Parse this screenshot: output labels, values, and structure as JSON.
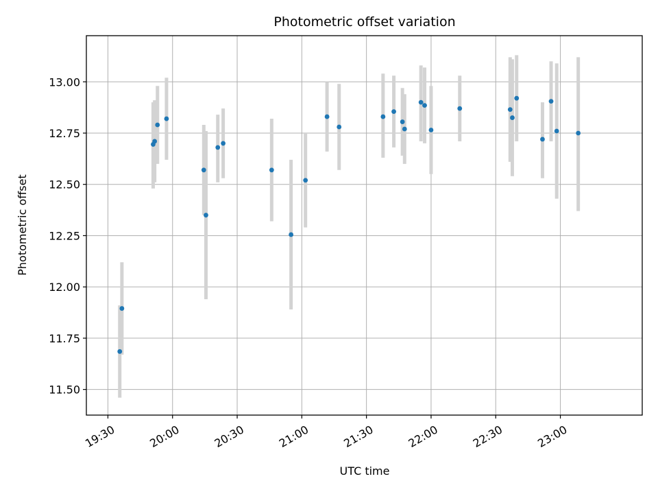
{
  "chart_data": {
    "type": "scatter",
    "title": "Photometric offset variation",
    "xlabel": "UTC time",
    "ylabel": "Photometric offset",
    "grid": true,
    "xaxis_kind": "time",
    "xlim": [
      "19:20",
      "23:38"
    ],
    "ylim": [
      11.375,
      13.225
    ],
    "xticks": [
      "19:30",
      "20:00",
      "20:30",
      "21:00",
      "21:30",
      "22:00",
      "22:30",
      "23:00"
    ],
    "yticks": [
      11.5,
      11.75,
      12.0,
      12.25,
      12.5,
      12.75,
      13.0
    ],
    "ytick_labels": [
      "11.50",
      "11.75",
      "12.00",
      "12.25",
      "12.50",
      "12.75",
      "13.00"
    ],
    "marker_color": "#1f77b4",
    "errorbar_color": "#d3d3d3",
    "series": [
      {
        "points": [
          {
            "x": "19:35.5",
            "y": 11.685,
            "lo": 11.46,
            "hi": 11.91
          },
          {
            "x": "19:36.5",
            "y": 11.895,
            "lo": 11.67,
            "hi": 12.12
          },
          {
            "x": "19:51.0",
            "y": 12.695,
            "lo": 12.48,
            "hi": 12.9
          },
          {
            "x": "19:51.7",
            "y": 12.71,
            "lo": 12.51,
            "hi": 12.91
          },
          {
            "x": "19:53.0",
            "y": 12.79,
            "lo": 12.6,
            "hi": 12.98
          },
          {
            "x": "19:57.2",
            "y": 12.82,
            "lo": 12.62,
            "hi": 13.02
          },
          {
            "x": "20:14.5",
            "y": 12.57,
            "lo": 12.35,
            "hi": 12.79
          },
          {
            "x": "20:15.5",
            "y": 12.35,
            "lo": 11.94,
            "hi": 12.76
          },
          {
            "x": "20:21.0",
            "y": 12.68,
            "lo": 12.51,
            "hi": 12.84
          },
          {
            "x": "20:23.5",
            "y": 12.7,
            "lo": 12.53,
            "hi": 12.87
          },
          {
            "x": "20:46.0",
            "y": 12.57,
            "lo": 12.32,
            "hi": 12.82
          },
          {
            "x": "20:55.0",
            "y": 12.255,
            "lo": 11.89,
            "hi": 12.62
          },
          {
            "x": "21:01.7",
            "y": 12.52,
            "lo": 12.29,
            "hi": 12.75
          },
          {
            "x": "21:11.7",
            "y": 12.83,
            "lo": 12.66,
            "hi": 13.0
          },
          {
            "x": "21:17.3",
            "y": 12.78,
            "lo": 12.57,
            "hi": 12.99
          },
          {
            "x": "21:37.7",
            "y": 12.83,
            "lo": 12.63,
            "hi": 13.04
          },
          {
            "x": "21:42.7",
            "y": 12.855,
            "lo": 12.68,
            "hi": 13.03
          },
          {
            "x": "21:46.7",
            "y": 12.805,
            "lo": 12.64,
            "hi": 12.97
          },
          {
            "x": "21:47.7",
            "y": 12.77,
            "lo": 12.6,
            "hi": 12.94
          },
          {
            "x": "21:55.3",
            "y": 12.9,
            "lo": 12.71,
            "hi": 13.08
          },
          {
            "x": "21:57.0",
            "y": 12.885,
            "lo": 12.7,
            "hi": 13.07
          },
          {
            "x": "22:00.0",
            "y": 12.765,
            "lo": 12.55,
            "hi": 12.98
          },
          {
            "x": "22:13.3",
            "y": 12.87,
            "lo": 12.71,
            "hi": 13.03
          },
          {
            "x": "22:36.7",
            "y": 12.865,
            "lo": 12.61,
            "hi": 13.12
          },
          {
            "x": "22:37.7",
            "y": 12.825,
            "lo": 12.54,
            "hi": 13.11
          },
          {
            "x": "22:39.7",
            "y": 12.92,
            "lo": 12.71,
            "hi": 13.13
          },
          {
            "x": "22:51.7",
            "y": 12.72,
            "lo": 12.53,
            "hi": 12.9
          },
          {
            "x": "22:55.7",
            "y": 12.905,
            "lo": 12.71,
            "hi": 13.1
          },
          {
            "x": "22:58.3",
            "y": 12.76,
            "lo": 12.43,
            "hi": 13.09
          },
          {
            "x": "23:08.3",
            "y": 12.75,
            "lo": 12.37,
            "hi": 13.12
          }
        ]
      }
    ]
  }
}
